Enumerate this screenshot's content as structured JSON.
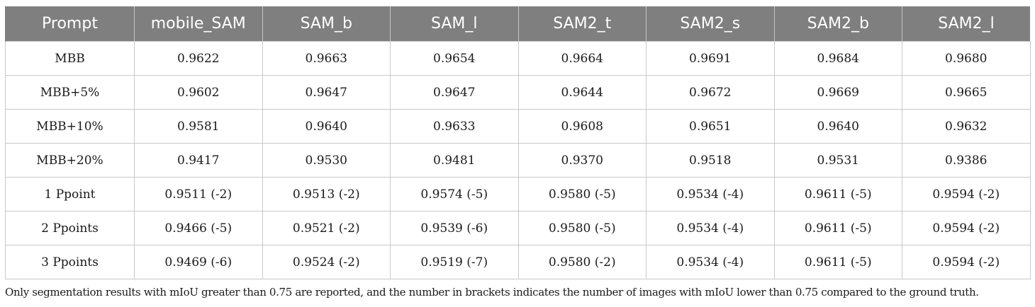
{
  "table": {
    "headers": [
      "Prompt",
      "mobile_SAM",
      "SAM_b",
      "SAM_l",
      "SAM2_t",
      "SAM2_s",
      "SAM2_b",
      "SAM2_l"
    ],
    "rows": [
      [
        "MBB",
        "0.9622",
        "0.9663",
        "0.9654",
        "0.9664",
        "0.9691",
        "0.9684",
        "0.9680"
      ],
      [
        "MBB+5%",
        "0.9602",
        "0.9647",
        "0.9647",
        "0.9644",
        "0.9672",
        "0.9669",
        "0.9665"
      ],
      [
        "MBB+10%",
        "0.9581",
        "0.9640",
        "0.9633",
        "0.9608",
        "0.9651",
        "0.9640",
        "0.9632"
      ],
      [
        "MBB+20%",
        "0.9417",
        "0.9530",
        "0.9481",
        "0.9370",
        "0.9518",
        "0.9531",
        "0.9386"
      ],
      [
        "1 Ppoint",
        "0.9511 (-2)",
        "0.9513 (-2)",
        "0.9574 (-5)",
        "0.9580 (-5)",
        "0.9534 (-4)",
        "0.9611 (-5)",
        "0.9594 (-2)"
      ],
      [
        "2 Ppoints",
        "0.9466 (-5)",
        "0.9521 (-2)",
        "0.9539 (-6)",
        "0.9580 (-5)",
        "0.9534 (-4)",
        "0.9611 (-5)",
        "0.9594 (-2)"
      ],
      [
        "3 Ppoints",
        "0.9469 (-6)",
        "0.9524 (-2)",
        "0.9519 (-7)",
        "0.9580 (-2)",
        "0.9534 (-4)",
        "0.9611 (-5)",
        "0.9594 (-2)"
      ]
    ]
  },
  "footnote": "Only segmentation results with mIoU greater than 0.75 are reported, and the number in brackets indicates the number of images with mIoU lower than 0.75 compared to the ground truth.",
  "colors": {
    "header_bg": "#7f7f7f",
    "header_text": "#ffffff",
    "grid": "#c9c9c9"
  }
}
